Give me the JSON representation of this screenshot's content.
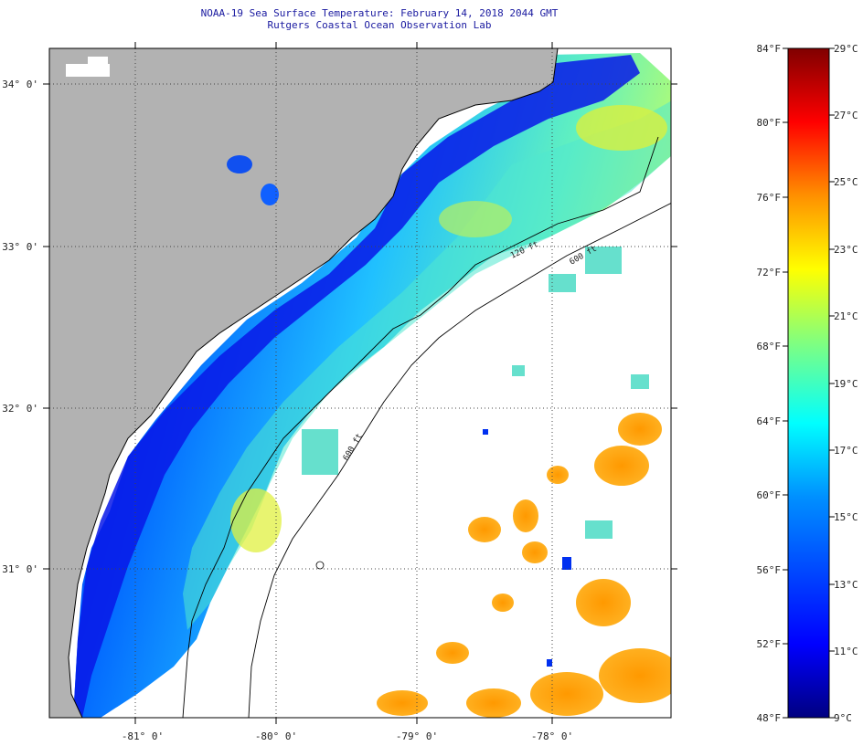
{
  "title": {
    "line1": "NOAA-19 Sea Surface Temperature:  February 14, 2018 2044 GMT",
    "line2": "Rutgers Coastal Ocean Observation Lab"
  },
  "map": {
    "lat_labels": [
      {
        "value": 34,
        "text": "34° 0'"
      },
      {
        "value": 33,
        "text": "33° 0'"
      },
      {
        "value": 32,
        "text": "32° 0'"
      },
      {
        "value": 31,
        "text": "31° 0'"
      }
    ],
    "lon_labels": [
      {
        "value": -81,
        "text": "-81° 0'"
      },
      {
        "value": -80,
        "text": "-80° 0'"
      },
      {
        "value": -79,
        "text": "-79° 0'"
      },
      {
        "value": -78,
        "text": "-78° 0'"
      }
    ],
    "isobath_labels": [
      "120 ft",
      "600 ft",
      "600 ft"
    ],
    "colors": {
      "land": "#b2b2b2",
      "cloud": "#ffffff",
      "gridline": "#555555",
      "coast": "#000000"
    }
  },
  "colorbar": {
    "fahrenheit": [
      "84°F",
      "80°F",
      "76°F",
      "72°F",
      "68°F",
      "64°F",
      "60°F",
      "56°F",
      "52°F",
      "48°F"
    ],
    "celsius": [
      "29°C",
      "27°C",
      "25°C",
      "23°C",
      "21°C",
      "19°C",
      "17°C",
      "15°C",
      "13°C",
      "11°C",
      "9°C"
    ],
    "range_f": [
      48,
      84
    ],
    "range_c": [
      9,
      29
    ],
    "gradient": [
      "#000080",
      "#0000ff",
      "#0080ff",
      "#00ffff",
      "#80ff80",
      "#ffff00",
      "#ff8000",
      "#ff0000",
      "#800000"
    ]
  }
}
